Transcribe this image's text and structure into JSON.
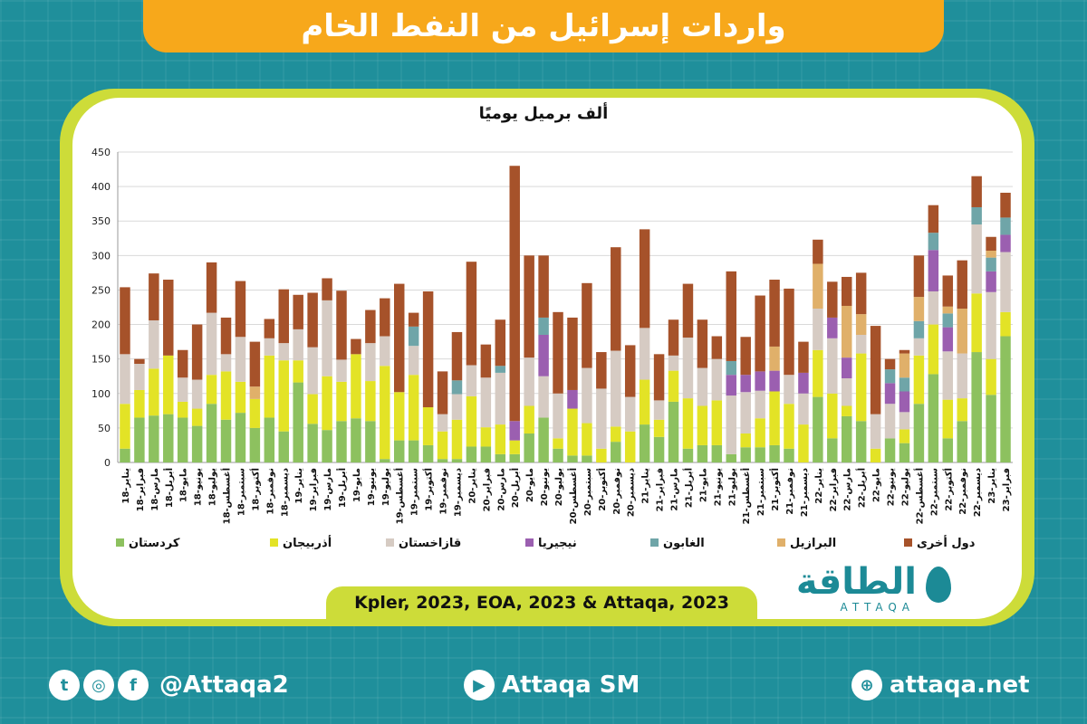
{
  "header": {
    "title": "واردات إسرائيل من النفط الخام"
  },
  "chart_data": {
    "type": "bar",
    "stacked": true,
    "subtitle": "ألف برميل يوميًا",
    "ylim": [
      0,
      450
    ],
    "yticks": [
      0,
      50,
      100,
      150,
      200,
      250,
      300,
      350,
      400,
      450
    ],
    "grid": true,
    "legend_position": "bottom",
    "categories": [
      "يناير-18",
      "فبراير-18",
      "مارس-18",
      "أبريل-18",
      "مايو-18",
      "يونيو-18",
      "يوليو-18",
      "أغسطس-18",
      "سبتمبر-18",
      "أكتوبر-18",
      "نوفمبر-18",
      "ديسمبر-18",
      "يناير-19",
      "فبراير-19",
      "مارس-19",
      "أبريل-19",
      "مايو-19",
      "يونيو-19",
      "يوليو-19",
      "أغسطس-19",
      "سبتمبر-19",
      "أكتوبر-19",
      "نوفمبر-19",
      "ديسمبر-19",
      "يناير-20",
      "فبراير-20",
      "مارس-20",
      "أبريل-20",
      "مايو-20",
      "يونيو-20",
      "يوليو-20",
      "أغسطس-20",
      "سبتمبر-20",
      "أكتوبر-20",
      "نوفمبر-20",
      "ديسمبر-20",
      "يناير-21",
      "فبراير-21",
      "مارس-21",
      "أبريل-21",
      "مايو-21",
      "يونيو-21",
      "يوليو-21",
      "أغسطس-21",
      "سبتمبر-21",
      "أكتوبر-21",
      "نوفمبر-21",
      "ديسمبر-21",
      "يناير-22",
      "فبراير-22",
      "مارس-22",
      "أبريل-22",
      "مايو-22",
      "يونيو-22",
      "يوليو-22",
      "أغسطس-22",
      "سبتمبر-22",
      "أكتوبر-22",
      "نوفمبر-22",
      "ديسمبر-22",
      "يناير-23",
      "فبراير-23"
    ],
    "series": [
      {
        "name": "كردستان",
        "color": "#8dc15f",
        "values": [
          20,
          65,
          68,
          70,
          65,
          53,
          85,
          62,
          72,
          50,
          65,
          45,
          116,
          56,
          47,
          60,
          64,
          60,
          5,
          32,
          32,
          25,
          5,
          5,
          23,
          23,
          12,
          12,
          42,
          65,
          20,
          10,
          10,
          0,
          30,
          0,
          55,
          37,
          88,
          20,
          25,
          25,
          12,
          22,
          22,
          25,
          20,
          0,
          95,
          35,
          67,
          60,
          0,
          35,
          28,
          85,
          128,
          35,
          60,
          160,
          98,
          183
        ]
      },
      {
        "name": "أذربيجان",
        "color": "#e3e326",
        "values": [
          65,
          40,
          68,
          85,
          23,
          25,
          42,
          70,
          45,
          42,
          90,
          103,
          32,
          43,
          78,
          57,
          93,
          58,
          135,
          70,
          95,
          55,
          40,
          57,
          73,
          28,
          43,
          20,
          40,
          0,
          15,
          68,
          47,
          20,
          22,
          45,
          65,
          25,
          45,
          73,
          57,
          65,
          0,
          20,
          42,
          78,
          65,
          55,
          68,
          65,
          15,
          98,
          20,
          0,
          20,
          70,
          72,
          56,
          33,
          85,
          52,
          35
        ]
      },
      {
        "name": "قازاخستان",
        "color": "#d6cbc3",
        "values": [
          72,
          38,
          70,
          0,
          35,
          42,
          90,
          25,
          65,
          0,
          25,
          25,
          45,
          68,
          110,
          32,
          0,
          55,
          43,
          0,
          42,
          0,
          25,
          37,
          45,
          72,
          75,
          0,
          70,
          60,
          65,
          0,
          80,
          87,
          110,
          50,
          75,
          28,
          22,
          88,
          55,
          60,
          85,
          60,
          40,
          0,
          42,
          45,
          60,
          80,
          40,
          27,
          50,
          50,
          25,
          25,
          48,
          70,
          65,
          100,
          97,
          87
        ]
      },
      {
        "name": "نيجيريا",
        "color": "#9b5fb0",
        "values": [
          0,
          0,
          0,
          0,
          0,
          0,
          0,
          0,
          0,
          0,
          0,
          0,
          0,
          0,
          0,
          0,
          0,
          0,
          0,
          0,
          0,
          0,
          0,
          0,
          0,
          0,
          0,
          28,
          0,
          60,
          0,
          27,
          0,
          0,
          0,
          0,
          0,
          0,
          0,
          0,
          0,
          0,
          30,
          25,
          28,
          30,
          0,
          30,
          0,
          30,
          30,
          0,
          0,
          30,
          30,
          0,
          60,
          35,
          0,
          0,
          30,
          25
        ]
      },
      {
        "name": "الغابون",
        "color": "#6fa5a8",
        "values": [
          0,
          0,
          0,
          0,
          0,
          0,
          0,
          0,
          0,
          0,
          0,
          0,
          0,
          0,
          0,
          0,
          0,
          0,
          0,
          0,
          28,
          0,
          0,
          20,
          0,
          0,
          10,
          0,
          0,
          25,
          0,
          0,
          0,
          0,
          0,
          0,
          0,
          0,
          0,
          0,
          0,
          0,
          20,
          0,
          0,
          0,
          0,
          0,
          0,
          0,
          0,
          0,
          0,
          20,
          20,
          25,
          25,
          20,
          0,
          25,
          20,
          25
        ]
      },
      {
        "name": "البرازيل",
        "color": "#e0b06a",
        "values": [
          0,
          0,
          0,
          0,
          0,
          0,
          0,
          0,
          0,
          18,
          0,
          0,
          0,
          0,
          0,
          0,
          0,
          0,
          0,
          0,
          0,
          0,
          0,
          0,
          0,
          0,
          0,
          0,
          0,
          0,
          0,
          0,
          0,
          0,
          0,
          0,
          0,
          0,
          0,
          0,
          0,
          0,
          0,
          0,
          0,
          35,
          0,
          0,
          65,
          0,
          75,
          30,
          0,
          0,
          35,
          35,
          0,
          10,
          65,
          0,
          10,
          0
        ]
      },
      {
        "name": "دول أخرى",
        "color": "#a6522a",
        "values": [
          97,
          7,
          68,
          110,
          40,
          80,
          73,
          53,
          81,
          65,
          28,
          78,
          50,
          79,
          32,
          100,
          22,
          48,
          55,
          157,
          20,
          168,
          62,
          70,
          150,
          48,
          67,
          370,
          148,
          90,
          118,
          105,
          123,
          53,
          150,
          75,
          143,
          67,
          52,
          78,
          70,
          33,
          130,
          55,
          110,
          97,
          125,
          45,
          35,
          52,
          42,
          60,
          128,
          15,
          5,
          60,
          40,
          45,
          70,
          45,
          20,
          36
        ]
      }
    ]
  },
  "legend_labels": [
    "كردستان",
    "أذربيجان",
    "قازاخستان",
    "نيجيريا",
    "الغابون",
    "البرازيل",
    "دول أخرى"
  ],
  "source": "Kpler, 2023, EOA, 2023 & Attaqa, 2023",
  "logo": {
    "ar": "الطاقة",
    "en": "ATTAQA"
  },
  "footer": {
    "social": "@Attaqa2",
    "youtube": "Attaqa SM",
    "website": "attaqa.net"
  }
}
